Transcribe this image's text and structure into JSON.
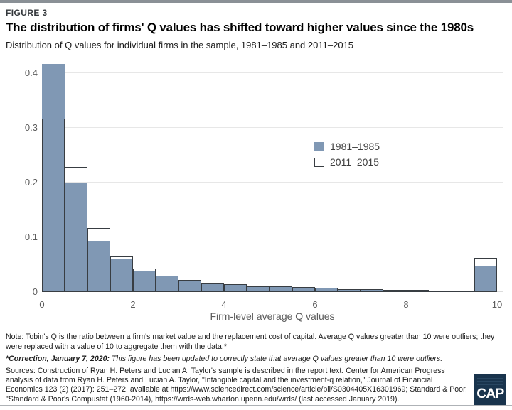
{
  "page": {
    "figure_label": "FIGURE 3",
    "title": "The distribution of firms' Q values has shifted toward higher values since the 1980s",
    "subtitle": "Distribution of Q values for individual firms in the sample, 1981–1985 and 2011–2015"
  },
  "chart_data": {
    "type": "bar",
    "subtype": "histogram",
    "title": "Distribution of Q values for individual firms in the sample, 1981–1985 and 2011–2015",
    "xlabel": "Firm-level average Q values",
    "ylabel": "",
    "xlim": [
      0,
      10
    ],
    "ylim": [
      0,
      0.42
    ],
    "bin_width": 0.5,
    "bin_starts": [
      0,
      0.5,
      1,
      1.5,
      2,
      2.5,
      3,
      3.5,
      4,
      4.5,
      5,
      5.5,
      6,
      6.5,
      7,
      7.5,
      8,
      8.5,
      9,
      9.5
    ],
    "x_ticks": [
      0,
      2,
      4,
      6,
      8,
      10
    ],
    "y_ticks": [
      0,
      0.1,
      0.2,
      0.3,
      0.4
    ],
    "grid": "horizontal",
    "legend_position": "upper right inside plot",
    "series": [
      {
        "name": "1981–1985",
        "style": "filled",
        "color": "#8098b4",
        "values": [
          0.417,
          0.2,
          0.093,
          0.061,
          0.039,
          0.029,
          0.021,
          0.016,
          0.013,
          0.01,
          0.009,
          0.008,
          0.007,
          0.005,
          0.0045,
          0.0035,
          0.003,
          0.0025,
          0.002,
          0.047
        ]
      },
      {
        "name": "2011–2015",
        "style": "outline",
        "color": "#383d42",
        "values": [
          0.317,
          0.229,
          0.117,
          0.066,
          0.043,
          0.03,
          0.022,
          0.017,
          0.014,
          0.011,
          0.01,
          0.0085,
          0.0075,
          0.0055,
          0.005,
          0.004,
          0.0033,
          0.0028,
          0.0022,
          0.062
        ]
      }
    ]
  },
  "legend": {
    "items": [
      {
        "label": "1981–1985",
        "style": "filled"
      },
      {
        "label": "2011–2015",
        "style": "outline"
      }
    ]
  },
  "notes": {
    "note": "Note: Tobin's Q is the ratio between a firm's market value and the replacement cost of capital. Average Q values greater than 10 were outliers; they were replaced with a value of 10 to aggregate them with the data.*",
    "correction_lead": "*Correction, January 7, 2020:",
    "correction_rest": " This figure has been updated to correctly state that average Q values greater than 10 were outliers.",
    "sources": "Sources: Construction of Ryan H. Peters and Lucian A. Taylor's sample is described in the report text. Center for American Progress analysis of data from Ryan H. Peters and Lucian A. Taylor, \"Intangible capital and the investment-q relation,\" Journal of Financial Economics 123 (2) (2017): 251–272, available at https://www.sciencedirect.com/science/article/pii/S0304405X16301969; Standard & Poor, \"Standard & Poor's Compustat (1960-2014), https://wrds-web.wharton.upenn.edu/wrds/ (last accessed January 2019)."
  },
  "logo": {
    "text": "CAP",
    "bg_color": "#19344d"
  },
  "colors": {
    "accent_bar_fill": "#8098b4",
    "outline_series": "#383d42",
    "top_rule": "#8a9096",
    "bottom_rule": "#aeb2b6",
    "gridline": "#e7e7e7"
  }
}
